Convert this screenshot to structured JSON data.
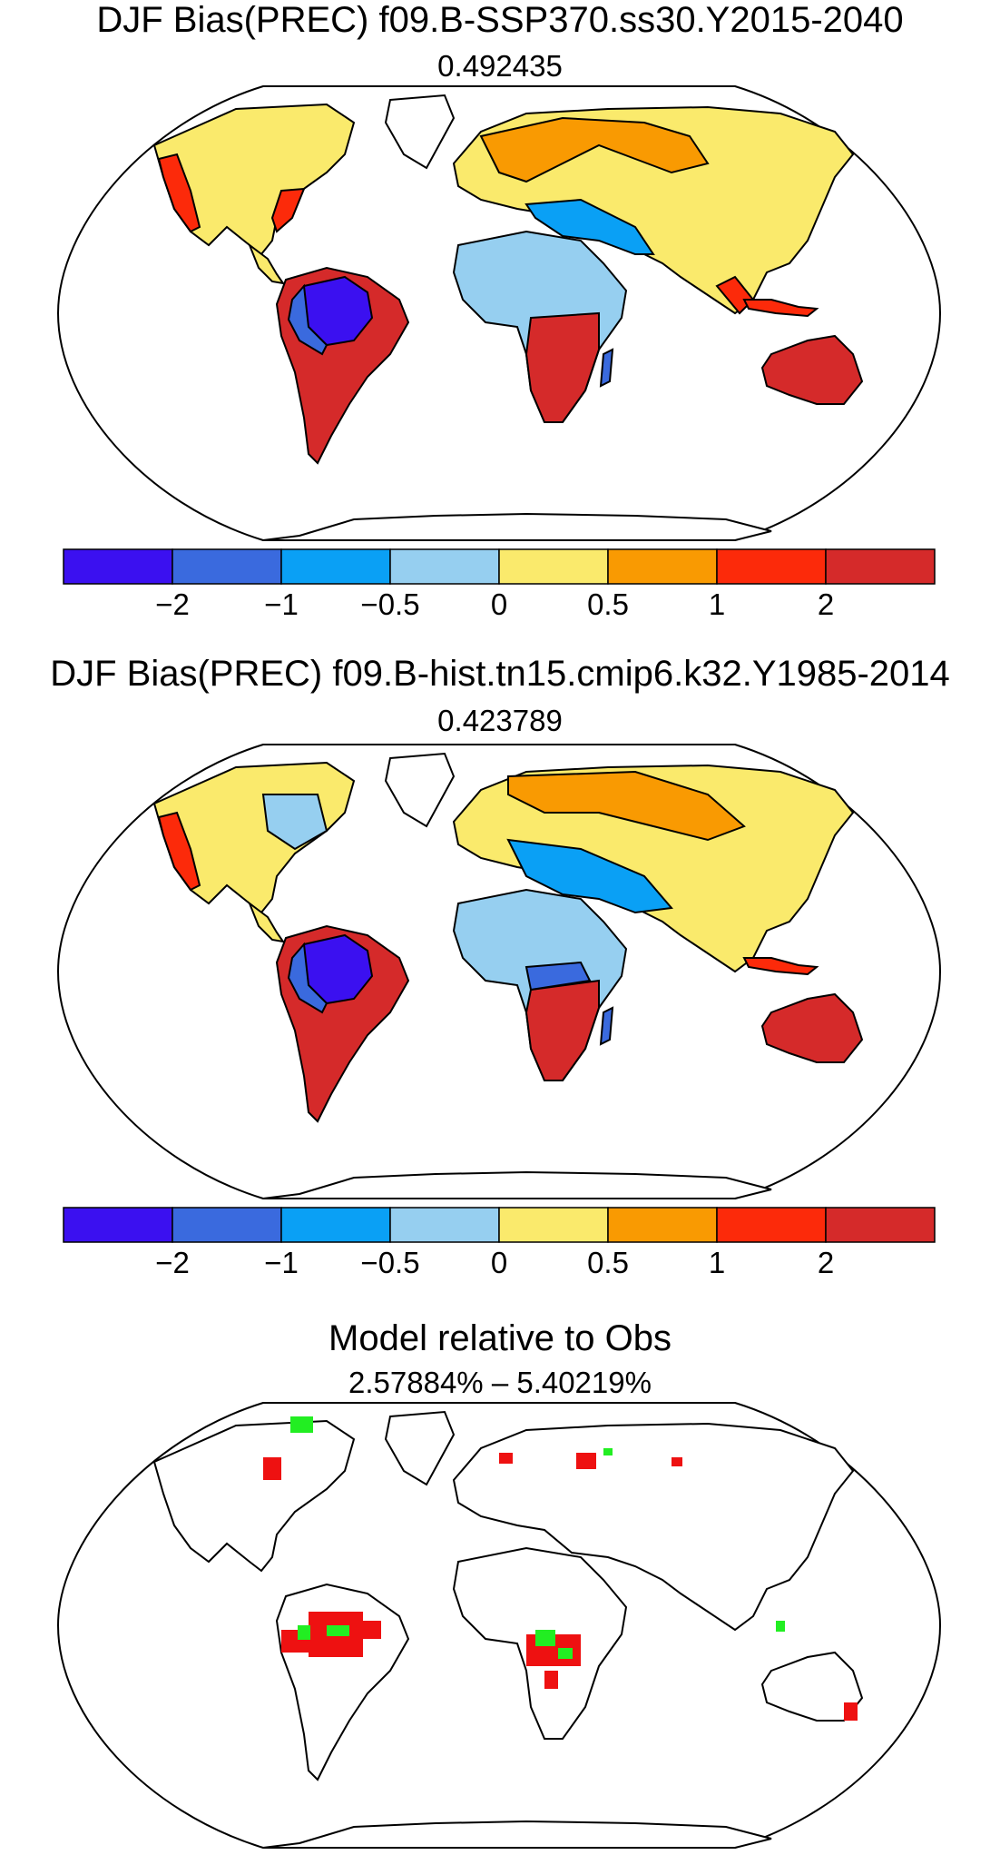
{
  "panels": [
    {
      "title": "DJF Bias(PREC) f09.B-SSP370.ss30.Y2015-2040",
      "subtitle": "0.492435"
    },
    {
      "title": "DJF Bias(PREC) f09.B-hist.tn15.cmip6.k32.Y1985-2014",
      "subtitle": "0.423789"
    },
    {
      "title": "Model relative to Obs",
      "subtitle": "2.57884% – 5.40219%"
    }
  ],
  "colorbar": {
    "colors": [
      "#3b10f0",
      "#3a6ade",
      "#0aa0f5",
      "#96cff0",
      "#faea6c",
      "#f99a02",
      "#fc2a0a",
      "#d52a2a"
    ],
    "tick_labels": [
      "−2",
      "−1",
      "−0.5",
      "0",
      "0.5",
      "1",
      "2"
    ]
  },
  "agreement_colors": {
    "wetter": "#ee1111",
    "drier": "#22ee22"
  }
}
